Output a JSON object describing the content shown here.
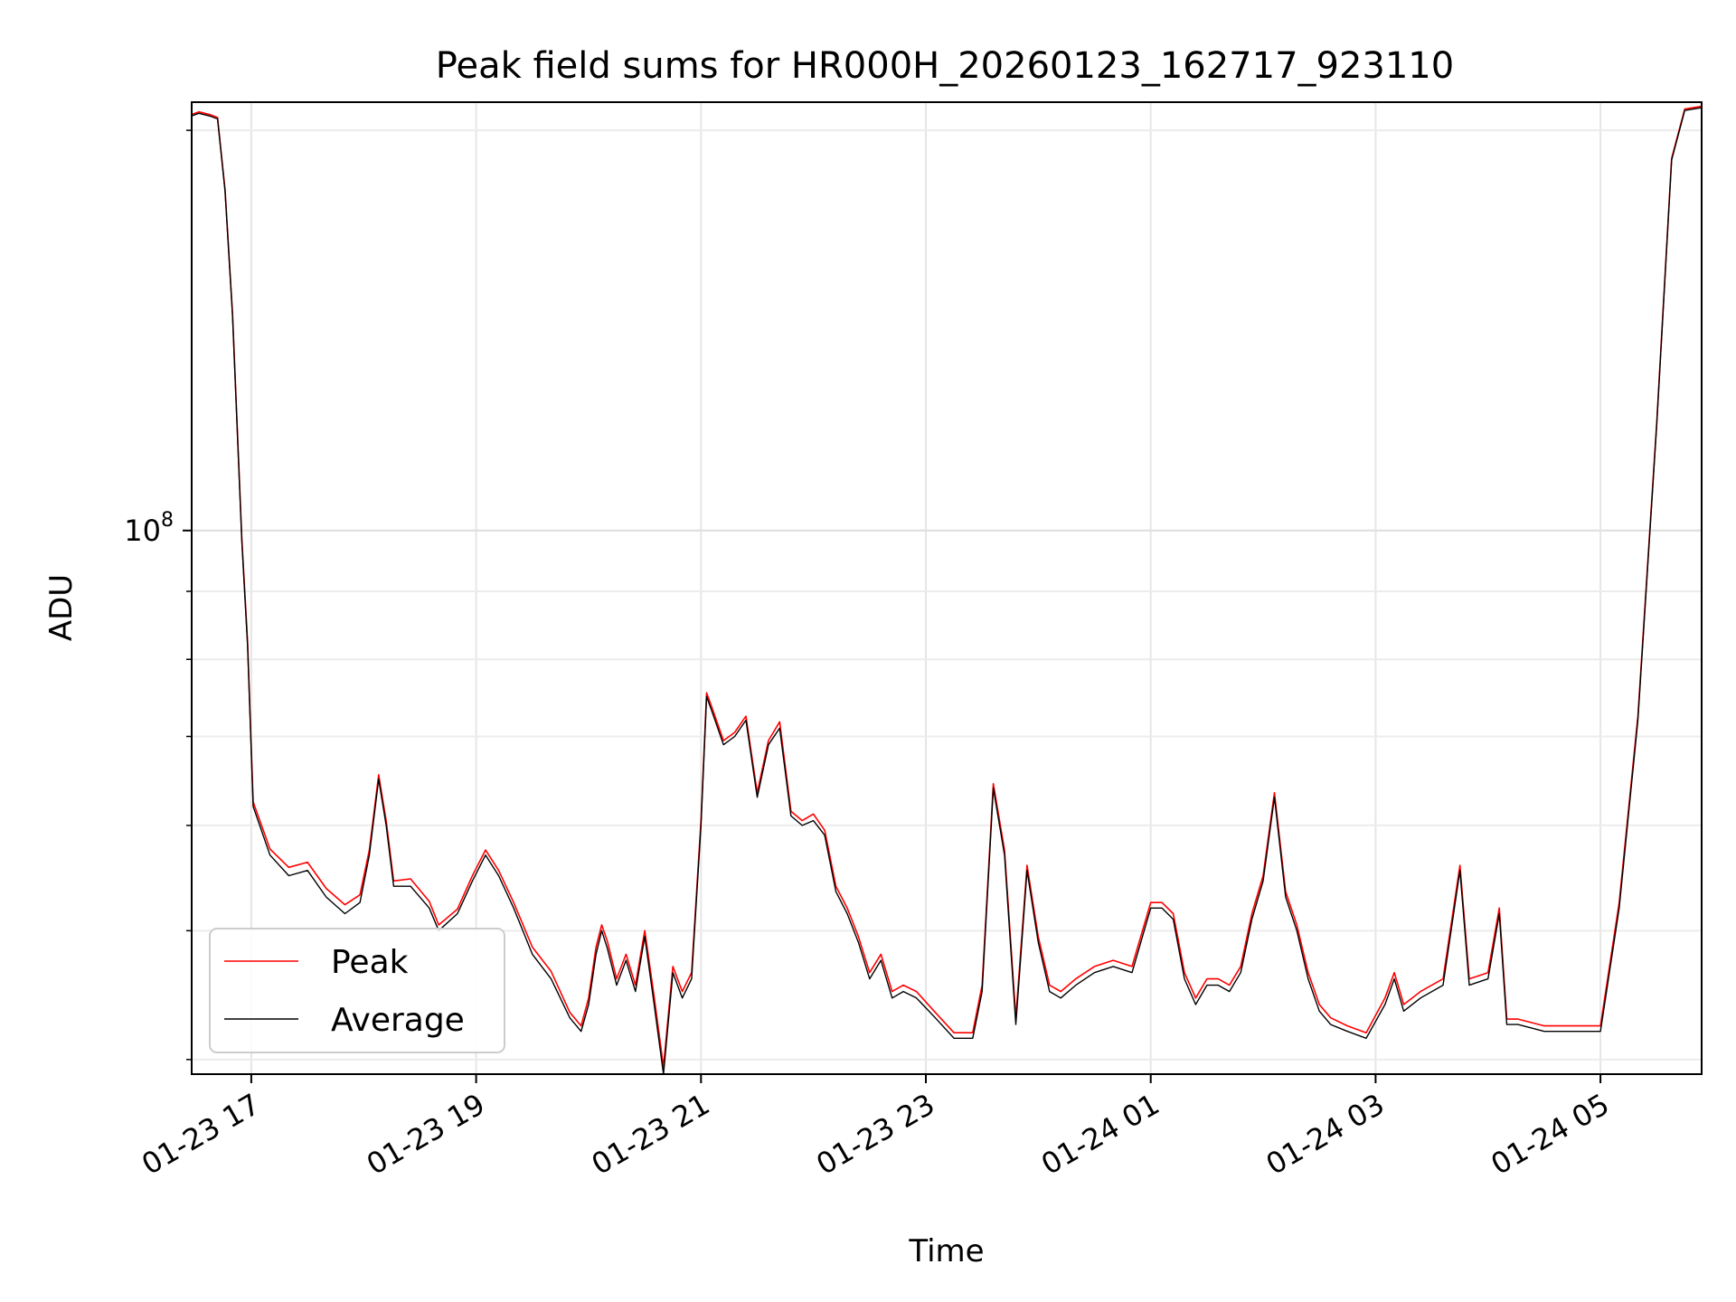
{
  "chart_data": {
    "type": "line",
    "title": "Peak field sums for HR000H_20260123_162717_923110",
    "xlabel": "Time",
    "ylabel": "ADU",
    "y_scale": "log",
    "ylim": [
      39000000,
      210000000
    ],
    "xlim_hours": [
      16.47,
      5.9
    ],
    "x_ticks": [
      "01-23 17",
      "01-23 19",
      "01-23 21",
      "01-23 23",
      "01-24 01",
      "01-24 03",
      "01-24 05"
    ],
    "y_ticks": [
      {
        "label": "10",
        "exp": "8",
        "value": 100000000
      }
    ],
    "grid": true,
    "legend": {
      "position": "lower-left",
      "entries": [
        "Peak",
        "Average"
      ]
    },
    "colors": {
      "Peak": "#ff0000",
      "Average": "#000000"
    },
    "series": [
      {
        "name": "Average",
        "points": [
          [
            "01-23 16:28",
            205000000
          ],
          [
            "01-23 16:32",
            206000000
          ],
          [
            "01-23 16:38",
            205000000
          ],
          [
            "01-23 16:42",
            204000000
          ],
          [
            "01-23 16:46",
            180000000
          ],
          [
            "01-23 16:50",
            145000000
          ],
          [
            "01-23 16:55",
            98000000
          ],
          [
            "01-23 16:58",
            82000000
          ],
          [
            "01-23 17:01",
            62000000
          ],
          [
            "01-23 17:10",
            57000000
          ],
          [
            "01-23 17:20",
            55000000
          ],
          [
            "01-23 17:30",
            55500000
          ],
          [
            "01-23 17:40",
            53000000
          ],
          [
            "01-23 17:50",
            51500000
          ],
          [
            "01-23 17:58",
            52500000
          ],
          [
            "01-23 18:03",
            57000000
          ],
          [
            "01-23 18:08",
            65000000
          ],
          [
            "01-23 18:12",
            60000000
          ],
          [
            "01-23 18:16",
            54000000
          ],
          [
            "01-23 18:25",
            54000000
          ],
          [
            "01-23 18:35",
            52000000
          ],
          [
            "01-23 18:40",
            50000000
          ],
          [
            "01-23 18:50",
            51500000
          ],
          [
            "01-23 18:58",
            54500000
          ],
          [
            "01-23 19:05",
            57000000
          ],
          [
            "01-23 19:12",
            55000000
          ],
          [
            "01-23 19:20",
            52000000
          ],
          [
            "01-23 19:30",
            48000000
          ],
          [
            "01-23 19:40",
            46000000
          ],
          [
            "01-23 19:50",
            43000000
          ],
          [
            "01-23 19:56",
            42000000
          ],
          [
            "01-23 20:00",
            44000000
          ],
          [
            "01-23 20:04",
            48000000
          ],
          [
            "01-23 20:07",
            50000000
          ],
          [
            "01-23 20:10",
            48500000
          ],
          [
            "01-23 20:15",
            45500000
          ],
          [
            "01-23 20:20",
            47500000
          ],
          [
            "01-23 20:25",
            45000000
          ],
          [
            "01-23 20:30",
            49500000
          ],
          [
            "01-23 20:35",
            44000000
          ],
          [
            "01-23 20:40",
            39000000
          ],
          [
            "01-23 20:45",
            46500000
          ],
          [
            "01-23 20:50",
            44500000
          ],
          [
            "01-23 20:55",
            46000000
          ],
          [
            "01-23 21:00",
            60000000
          ],
          [
            "01-23 21:03",
            75000000
          ],
          [
            "01-23 21:06",
            73000000
          ],
          [
            "01-23 21:12",
            69000000
          ],
          [
            "01-23 21:18",
            70000000
          ],
          [
            "01-23 21:24",
            72000000
          ],
          [
            "01-23 21:30",
            63000000
          ],
          [
            "01-23 21:36",
            69000000
          ],
          [
            "01-23 21:42",
            71000000
          ],
          [
            "01-23 21:48",
            61000000
          ],
          [
            "01-23 21:54",
            60000000
          ],
          [
            "01-23 22:00",
            60500000
          ],
          [
            "01-23 22:06",
            59000000
          ],
          [
            "01-23 22:12",
            53500000
          ],
          [
            "01-23 22:18",
            51500000
          ],
          [
            "01-23 22:24",
            49000000
          ],
          [
            "01-23 22:30",
            46000000
          ],
          [
            "01-23 22:36",
            47500000
          ],
          [
            "01-23 22:42",
            44500000
          ],
          [
            "01-23 22:48",
            45000000
          ],
          [
            "01-23 22:55",
            44500000
          ],
          [
            "01-23 23:05",
            43000000
          ],
          [
            "01-23 23:15",
            41500000
          ],
          [
            "01-23 23:25",
            41500000
          ],
          [
            "01-23 23:30",
            45000000
          ],
          [
            "01-23 23:36",
            64000000
          ],
          [
            "01-23 23:42",
            57000000
          ],
          [
            "01-23 23:48",
            42500000
          ],
          [
            "01-23 23:54",
            55500000
          ],
          [
            "01-24 00:00",
            49000000
          ],
          [
            "01-24 00:06",
            45000000
          ],
          [
            "01-24 00:12",
            44500000
          ],
          [
            "01-24 00:20",
            45500000
          ],
          [
            "01-24 00:30",
            46500000
          ],
          [
            "01-24 00:40",
            47000000
          ],
          [
            "01-24 00:50",
            46500000
          ],
          [
            "01-24 01:00",
            52000000
          ],
          [
            "01-24 01:06",
            52000000
          ],
          [
            "01-24 01:12",
            51000000
          ],
          [
            "01-24 01:18",
            46000000
          ],
          [
            "01-24 01:24",
            44000000
          ],
          [
            "01-24 01:30",
            45500000
          ],
          [
            "01-24 01:36",
            45500000
          ],
          [
            "01-24 01:42",
            45000000
          ],
          [
            "01-24 01:48",
            46500000
          ],
          [
            "01-24 01:54",
            51000000
          ],
          [
            "01-24 02:00",
            54500000
          ],
          [
            "01-24 02:06",
            63000000
          ],
          [
            "01-24 02:12",
            53000000
          ],
          [
            "01-24 02:18",
            50000000
          ],
          [
            "01-24 02:24",
            46000000
          ],
          [
            "01-24 02:30",
            43500000
          ],
          [
            "01-24 02:36",
            42500000
          ],
          [
            "01-24 02:45",
            42000000
          ],
          [
            "01-24 02:55",
            41500000
          ],
          [
            "01-24 03:05",
            44000000
          ],
          [
            "01-24 03:10",
            46000000
          ],
          [
            "01-24 03:15",
            43500000
          ],
          [
            "01-24 03:24",
            44500000
          ],
          [
            "01-24 03:36",
            45500000
          ],
          [
            "01-24 03:45",
            55500000
          ],
          [
            "01-24 03:50",
            45500000
          ],
          [
            "01-24 04:00",
            46000000
          ],
          [
            "01-24 04:06",
            51500000
          ],
          [
            "01-24 04:10",
            42500000
          ],
          [
            "01-24 04:16",
            42500000
          ],
          [
            "01-24 04:30",
            42000000
          ],
          [
            "01-24 04:45",
            42000000
          ],
          [
            "01-24 05:00",
            42000000
          ],
          [
            "01-24 05:10",
            52000000
          ],
          [
            "01-24 05:20",
            72000000
          ],
          [
            "01-24 05:30",
            120000000
          ],
          [
            "01-24 05:38",
            190000000
          ],
          [
            "01-24 05:45",
            207000000
          ],
          [
            "01-24 05:54",
            208000000
          ]
        ]
      },
      {
        "name": "Peak",
        "points": [
          [
            "01-23 16:28",
            205500000
          ],
          [
            "01-23 16:32",
            206500000
          ],
          [
            "01-23 16:38",
            205500000
          ],
          [
            "01-23 16:42",
            204500000
          ],
          [
            "01-23 16:46",
            180500000
          ],
          [
            "01-23 16:50",
            145500000
          ],
          [
            "01-23 16:55",
            98500000
          ],
          [
            "01-23 16:58",
            82500000
          ],
          [
            "01-23 17:01",
            62500000
          ],
          [
            "01-23 17:10",
            57600000
          ],
          [
            "01-23 17:20",
            55800000
          ],
          [
            "01-23 17:30",
            56300000
          ],
          [
            "01-23 17:40",
            53800000
          ],
          [
            "01-23 17:50",
            52300000
          ],
          [
            "01-23 17:58",
            53200000
          ],
          [
            "01-23 18:03",
            57500000
          ],
          [
            "01-23 18:08",
            65500000
          ],
          [
            "01-23 18:12",
            60500000
          ],
          [
            "01-23 18:16",
            54500000
          ],
          [
            "01-23 18:25",
            54700000
          ],
          [
            "01-23 18:35",
            52600000
          ],
          [
            "01-23 18:40",
            50500000
          ],
          [
            "01-23 18:50",
            51900000
          ],
          [
            "01-23 18:58",
            55000000
          ],
          [
            "01-23 19:05",
            57500000
          ],
          [
            "01-23 19:12",
            55500000
          ],
          [
            "01-23 19:20",
            52500000
          ],
          [
            "01-23 19:30",
            48600000
          ],
          [
            "01-23 19:40",
            46600000
          ],
          [
            "01-23 19:50",
            43400000
          ],
          [
            "01-23 19:56",
            42400000
          ],
          [
            "01-23 20:00",
            44500000
          ],
          [
            "01-23 20:04",
            48600000
          ],
          [
            "01-23 20:07",
            50500000
          ],
          [
            "01-23 20:10",
            49100000
          ],
          [
            "01-23 20:15",
            46000000
          ],
          [
            "01-23 20:20",
            48000000
          ],
          [
            "01-23 20:25",
            45500000
          ],
          [
            "01-23 20:30",
            50000000
          ],
          [
            "01-23 20:35",
            44600000
          ],
          [
            "01-23 20:40",
            39500000
          ],
          [
            "01-23 20:45",
            47000000
          ],
          [
            "01-23 20:50",
            45000000
          ],
          [
            "01-23 20:55",
            46500000
          ],
          [
            "01-23 21:00",
            60500000
          ],
          [
            "01-23 21:03",
            75500000
          ],
          [
            "01-23 21:06",
            73500000
          ],
          [
            "01-23 21:12",
            69500000
          ],
          [
            "01-23 21:18",
            70500000
          ],
          [
            "01-23 21:24",
            72500000
          ],
          [
            "01-23 21:30",
            63500000
          ],
          [
            "01-23 21:36",
            69500000
          ],
          [
            "01-23 21:42",
            71800000
          ],
          [
            "01-23 21:48",
            61500000
          ],
          [
            "01-23 21:54",
            60500000
          ],
          [
            "01-23 22:00",
            61200000
          ],
          [
            "01-23 22:06",
            59500000
          ],
          [
            "01-23 22:12",
            54000000
          ],
          [
            "01-23 22:18",
            52000000
          ],
          [
            "01-23 22:24",
            49500000
          ],
          [
            "01-23 22:30",
            46500000
          ],
          [
            "01-23 22:36",
            48000000
          ],
          [
            "01-23 22:42",
            45000000
          ],
          [
            "01-23 22:48",
            45500000
          ],
          [
            "01-23 22:55",
            45000000
          ],
          [
            "01-23 23:05",
            43400000
          ],
          [
            "01-23 23:15",
            41900000
          ],
          [
            "01-23 23:25",
            41900000
          ],
          [
            "01-23 23:30",
            45500000
          ],
          [
            "01-23 23:36",
            64500000
          ],
          [
            "01-23 23:42",
            57500000
          ],
          [
            "01-23 23:48",
            43000000
          ],
          [
            "01-23 23:54",
            56000000
          ],
          [
            "01-24 00:00",
            49500000
          ],
          [
            "01-24 00:06",
            45500000
          ],
          [
            "01-24 00:12",
            45000000
          ],
          [
            "01-24 00:20",
            46000000
          ],
          [
            "01-24 00:30",
            47000000
          ],
          [
            "01-24 00:40",
            47500000
          ],
          [
            "01-24 00:50",
            47000000
          ],
          [
            "01-24 01:00",
            52500000
          ],
          [
            "01-24 01:06",
            52500000
          ],
          [
            "01-24 01:12",
            51500000
          ],
          [
            "01-24 01:18",
            46500000
          ],
          [
            "01-24 01:24",
            44500000
          ],
          [
            "01-24 01:30",
            46000000
          ],
          [
            "01-24 01:36",
            46000000
          ],
          [
            "01-24 01:42",
            45500000
          ],
          [
            "01-24 01:48",
            47000000
          ],
          [
            "01-24 01:54",
            51500000
          ],
          [
            "01-24 02:00",
            55000000
          ],
          [
            "01-24 02:06",
            63500000
          ],
          [
            "01-24 02:12",
            53500000
          ],
          [
            "01-24 02:18",
            50500000
          ],
          [
            "01-24 02:24",
            46500000
          ],
          [
            "01-24 02:30",
            44000000
          ],
          [
            "01-24 02:36",
            43000000
          ],
          [
            "01-24 02:45",
            42400000
          ],
          [
            "01-24 02:55",
            41900000
          ],
          [
            "01-24 03:05",
            44500000
          ],
          [
            "01-24 03:10",
            46500000
          ],
          [
            "01-24 03:15",
            44000000
          ],
          [
            "01-24 03:24",
            45000000
          ],
          [
            "01-24 03:36",
            46000000
          ],
          [
            "01-24 03:45",
            56000000
          ],
          [
            "01-24 03:50",
            46000000
          ],
          [
            "01-24 04:00",
            46500000
          ],
          [
            "01-24 04:06",
            52000000
          ],
          [
            "01-24 04:10",
            42900000
          ],
          [
            "01-24 04:16",
            42900000
          ],
          [
            "01-24 04:30",
            42400000
          ],
          [
            "01-24 04:45",
            42400000
          ],
          [
            "01-24 05:00",
            42400000
          ],
          [
            "01-24 05:10",
            52500000
          ],
          [
            "01-24 05:20",
            72500000
          ],
          [
            "01-24 05:30",
            120500000
          ],
          [
            "01-24 05:38",
            190500000
          ],
          [
            "01-24 05:45",
            207500000
          ],
          [
            "01-24 05:54",
            208500000
          ]
        ]
      }
    ]
  }
}
